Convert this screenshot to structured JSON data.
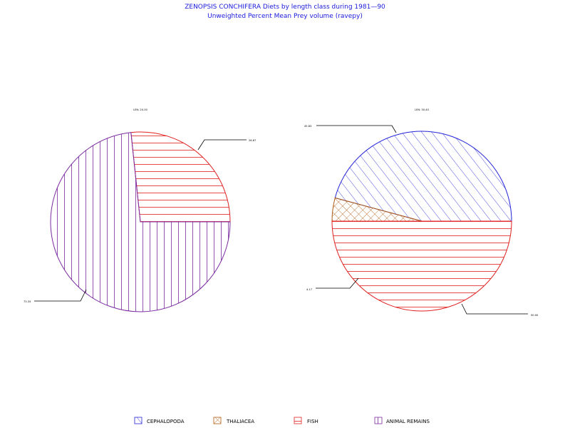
{
  "header": {
    "title": "ZENOPSIS CONCHIFERA Diets by length class during 1981—90",
    "subtitle": "Unweighted Percent Mean Prey volume (ravepy)"
  },
  "chart_data": [
    {
      "type": "pie",
      "label": "LEN: 20-30",
      "slices": [
        {
          "name": "FISH",
          "value": 26.67,
          "label": "26.67"
        },
        {
          "name": "ANIMAL REMAINS",
          "value": 73.33,
          "label": "73.33"
        }
      ]
    },
    {
      "type": "pie",
      "label": "LEN: 30-40",
      "slices": [
        {
          "name": "CEPHALOPODA",
          "value": 45.83,
          "label": "45.83"
        },
        {
          "name": "THALIACEA",
          "value": 4.17,
          "label": "4.17"
        },
        {
          "name": "FISH",
          "value": 50.0,
          "label": "50.00"
        }
      ]
    }
  ],
  "legend": [
    {
      "name": "CEPHALOPODA",
      "color": "#2424d8",
      "pattern": "diagonal"
    },
    {
      "name": "THALIACEA",
      "color": "#b05a10",
      "pattern": "crosshatch"
    },
    {
      "name": "FISH",
      "color": "#e02020",
      "pattern": "horizontal"
    },
    {
      "name": "ANIMAL REMAINS",
      "color": "#7a2aa0",
      "pattern": "vertical"
    }
  ]
}
